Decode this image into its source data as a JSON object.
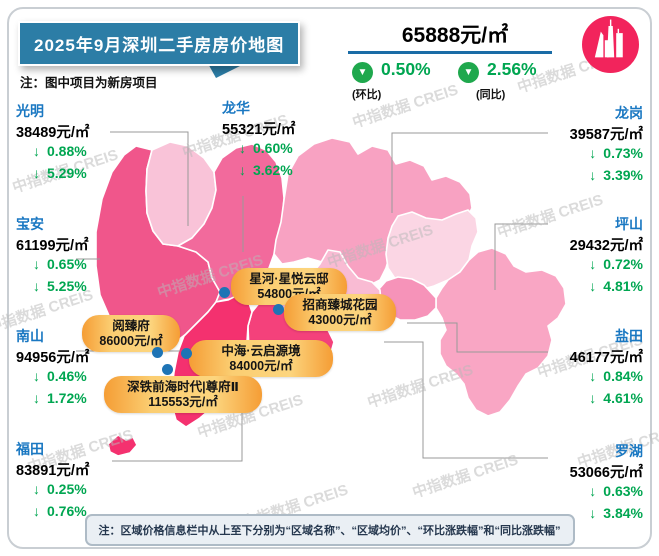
{
  "title": "2025年9月深圳二手房房价地图",
  "note_top": "注：图中项目为新房项目",
  "summary": {
    "avg_price": "65888元/㎡",
    "mom": {
      "value": "0.50%",
      "label": "(环比)"
    },
    "yoy": {
      "value": "2.56%",
      "label": "(同比)"
    }
  },
  "districts": [
    {
      "name": "光明",
      "price": "38489元/㎡",
      "mom": "0.88%",
      "yoy": "5.29%"
    },
    {
      "name": "宝安",
      "price": "61199元/㎡",
      "mom": "0.65%",
      "yoy": "5.25%"
    },
    {
      "name": "南山",
      "price": "94956元/㎡",
      "mom": "0.46%",
      "yoy": "1.72%"
    },
    {
      "name": "福田",
      "price": "83891元/㎡",
      "mom": "0.25%",
      "yoy": "0.76%"
    },
    {
      "name": "龙华",
      "price": "55321元/㎡",
      "mom": "0.60%",
      "yoy": "3.62%"
    },
    {
      "name": "龙岗",
      "price": "39587元/㎡",
      "mom": "0.73%",
      "yoy": "3.39%"
    },
    {
      "name": "坪山",
      "price": "29432元/㎡",
      "mom": "0.72%",
      "yoy": "4.81%"
    },
    {
      "name": "盐田",
      "price": "46177元/㎡",
      "mom": "0.84%",
      "yoy": "4.61%"
    },
    {
      "name": "罗湖",
      "price": "53066元/㎡",
      "mom": "0.63%",
      "yoy": "3.84%"
    }
  ],
  "projects": [
    {
      "name": "星河·星悦云邸",
      "price": "54800元/㎡"
    },
    {
      "name": "招商臻城花园",
      "price": "43000元/㎡"
    },
    {
      "name": "阅臻府",
      "price": "86000元/㎡"
    },
    {
      "name": "中海·云启源境",
      "price": "84000元/㎡"
    },
    {
      "name": "深铁前海时代|尊府Ⅱ",
      "price": "115553元/㎡"
    }
  ],
  "note_bottom": "注：区域价格信息栏中从上至下分别为“区域名称”、“区域均价”、“环比涨跌幅”和“同比涨跌幅”",
  "watermark": "中指数据 CREIS",
  "icons": {
    "down_arrow": "↓",
    "down_triangle": "▼"
  },
  "colors": {
    "title_bg": "#2c7da6",
    "green": "#00a651",
    "badge_green": "#1fa84d",
    "underline_blue": "#1a6ca6",
    "district_name_blue": "#1a78c2",
    "logo_pink": "#f2245c",
    "callout_orange": "#f7a13c",
    "map_dark": "#f4316f",
    "map_medium": "#f0568b",
    "map_light": "#fbd6e4"
  }
}
